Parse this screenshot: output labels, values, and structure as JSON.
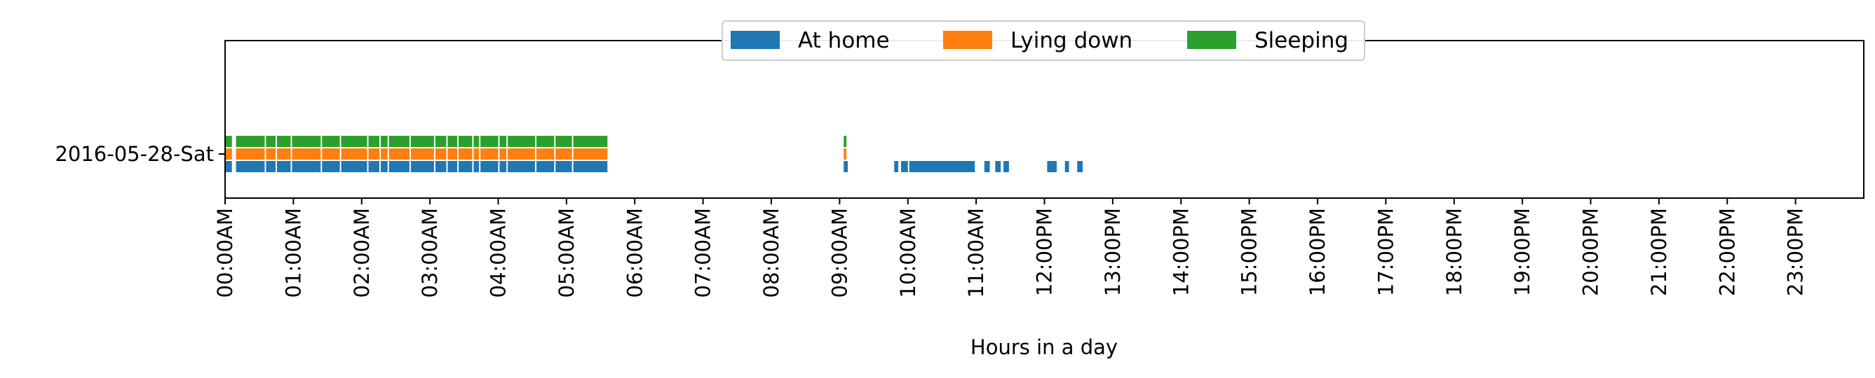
{
  "chart_data": {
    "type": "bar",
    "orientation": "horizontal",
    "categories": [
      "2016-05-28-Sat"
    ],
    "xlabel": "Hours in a day",
    "ylabel": "",
    "xlim": [
      0,
      24
    ],
    "x_ticks": [
      0,
      1,
      2,
      3,
      4,
      5,
      6,
      7,
      8,
      9,
      10,
      11,
      12,
      13,
      14,
      15,
      16,
      17,
      18,
      19,
      20,
      21,
      22,
      23
    ],
    "x_tick_labels": [
      "00:00AM",
      "01:00AM",
      "02:00AM",
      "03:00AM",
      "04:00AM",
      "05:00AM",
      "06:00AM",
      "07:00AM",
      "08:00AM",
      "09:00AM",
      "10:00AM",
      "11:00AM",
      "12:00PM",
      "13:00PM",
      "14:00PM",
      "15:00PM",
      "16:00PM",
      "17:00PM",
      "18:00PM",
      "19:00PM",
      "20:00PM",
      "21:00PM",
      "22:00PM",
      "23:00PM"
    ],
    "grid": false,
    "legend": {
      "position": "top-center",
      "columns": 3
    },
    "series": [
      {
        "name": "At home",
        "color": "#1f77b4",
        "intervals": [
          [
            0.0,
            0.1
          ],
          [
            0.16,
            0.58
          ],
          [
            0.6,
            0.74
          ],
          [
            0.76,
            0.96
          ],
          [
            0.98,
            1.4
          ],
          [
            1.42,
            1.68
          ],
          [
            1.7,
            2.08
          ],
          [
            2.1,
            2.26
          ],
          [
            2.28,
            2.38
          ],
          [
            2.4,
            2.7
          ],
          [
            2.72,
            3.06
          ],
          [
            3.08,
            3.24
          ],
          [
            3.26,
            3.4
          ],
          [
            3.42,
            3.62
          ],
          [
            3.64,
            3.72
          ],
          [
            3.74,
            4.0
          ],
          [
            4.02,
            4.12
          ],
          [
            4.14,
            4.54
          ],
          [
            4.56,
            4.82
          ],
          [
            4.84,
            5.08
          ],
          [
            5.1,
            5.6
          ],
          [
            9.06,
            9.12
          ],
          [
            9.8,
            9.86
          ],
          [
            9.9,
            10.0
          ],
          [
            10.02,
            10.98
          ],
          [
            11.12,
            11.2
          ],
          [
            11.28,
            11.36
          ],
          [
            11.4,
            11.48
          ],
          [
            12.04,
            12.18
          ],
          [
            12.3,
            12.36
          ],
          [
            12.48,
            12.56
          ]
        ]
      },
      {
        "name": "Lying down",
        "color": "#ff7f0e",
        "intervals": [
          [
            0.0,
            0.1
          ],
          [
            0.16,
            0.58
          ],
          [
            0.6,
            0.74
          ],
          [
            0.76,
            0.96
          ],
          [
            0.98,
            1.4
          ],
          [
            1.42,
            1.68
          ],
          [
            1.7,
            2.08
          ],
          [
            2.1,
            2.26
          ],
          [
            2.28,
            2.38
          ],
          [
            2.4,
            2.7
          ],
          [
            2.72,
            3.06
          ],
          [
            3.08,
            3.24
          ],
          [
            3.26,
            3.4
          ],
          [
            3.42,
            3.62
          ],
          [
            3.64,
            3.72
          ],
          [
            3.74,
            4.0
          ],
          [
            4.02,
            4.12
          ],
          [
            4.14,
            4.54
          ],
          [
            4.56,
            4.82
          ],
          [
            4.84,
            5.08
          ],
          [
            5.1,
            5.6
          ],
          [
            9.06,
            9.1
          ]
        ]
      },
      {
        "name": "Sleeping",
        "color": "#2ca02c",
        "intervals": [
          [
            0.0,
            0.1
          ],
          [
            0.16,
            0.58
          ],
          [
            0.6,
            0.74
          ],
          [
            0.76,
            0.96
          ],
          [
            0.98,
            1.4
          ],
          [
            1.42,
            1.68
          ],
          [
            1.7,
            2.08
          ],
          [
            2.1,
            2.26
          ],
          [
            2.28,
            2.38
          ],
          [
            2.4,
            2.7
          ],
          [
            2.72,
            3.06
          ],
          [
            3.08,
            3.24
          ],
          [
            3.26,
            3.4
          ],
          [
            3.42,
            3.62
          ],
          [
            3.64,
            3.72
          ],
          [
            3.74,
            4.0
          ],
          [
            4.02,
            4.12
          ],
          [
            4.14,
            4.54
          ],
          [
            4.56,
            4.82
          ],
          [
            4.84,
            5.08
          ],
          [
            5.1,
            5.6
          ],
          [
            9.06,
            9.1
          ]
        ]
      }
    ]
  }
}
